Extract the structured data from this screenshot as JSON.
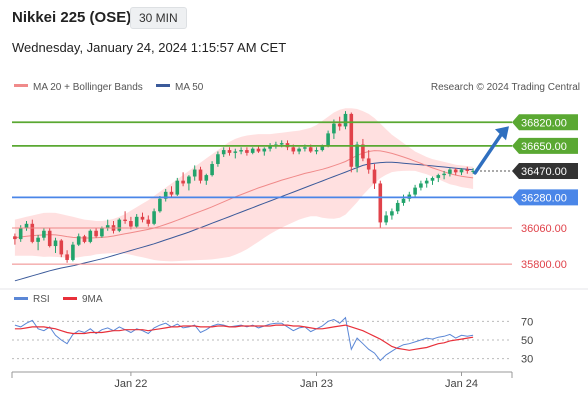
{
  "header": {
    "title": "Nikkei 225 (OSE)",
    "timeframe": "30 MIN",
    "datetime": "Wednesday, January 24, 2024 1:15:57 AM CET"
  },
  "legend": {
    "ma20_label": "MA 20 + Bollinger Bands",
    "ma50_label": "MA 50",
    "source": "Research © 2024 Trading Central"
  },
  "colors": {
    "up": "#22a36b",
    "down": "#e0424a",
    "ma20": "#f08a8a",
    "ma50": "#3b5a9a",
    "band_fill": "#ffd6d6",
    "resistance": "#5aa832",
    "pivot": "#4a86e8",
    "support": "#ef8888",
    "rsi": "#5b87d6",
    "rsi_ma": "#e8303a",
    "arrow": "#2f6fbf"
  },
  "chart_data": [
    {
      "type": "candlestick",
      "title": "Nikkei 225 (OSE)",
      "ylim": [
        35650,
        36980
      ],
      "x_labels": [
        "Jan 22",
        "Jan 23",
        "Jan 24"
      ],
      "current_price": 36470.0,
      "levels": [
        {
          "value": 36820.0,
          "label": "36820.00",
          "kind": "resistance",
          "arrow_target": true
        },
        {
          "value": 36650.0,
          "label": "36650.00",
          "kind": "resistance"
        },
        {
          "value": 36280.0,
          "label": "36280.00",
          "kind": "pivot"
        },
        {
          "value": 36060.0,
          "label": "36060.00",
          "kind": "support"
        },
        {
          "value": 35800.0,
          "label": "35800.00",
          "kind": "support"
        }
      ],
      "candles": [
        [
          36000,
          36020,
          35940,
          35980
        ],
        [
          35980,
          36080,
          35960,
          36060
        ],
        [
          36060,
          36110,
          36040,
          36090
        ],
        [
          36090,
          36120,
          35950,
          35960
        ],
        [
          35960,
          36010,
          35900,
          35990
        ],
        [
          35990,
          36060,
          35970,
          36040
        ],
        [
          36040,
          36060,
          35920,
          35930
        ],
        [
          35930,
          35990,
          35880,
          35970
        ],
        [
          35970,
          35980,
          35850,
          35870
        ],
        [
          35870,
          35900,
          35810,
          35830
        ],
        [
          35830,
          35960,
          35820,
          35940
        ],
        [
          35940,
          36020,
          35930,
          36000
        ],
        [
          36000,
          36010,
          35950,
          35960
        ],
        [
          35960,
          36050,
          35950,
          36040
        ],
        [
          36040,
          36060,
          35990,
          36000
        ],
        [
          36000,
          36070,
          35990,
          36060
        ],
        [
          36060,
          36120,
          36040,
          36080
        ],
        [
          36080,
          36110,
          36020,
          36040
        ],
        [
          36040,
          36130,
          36030,
          36120
        ],
        [
          36120,
          36180,
          36090,
          36110
        ],
        [
          36110,
          36140,
          36050,
          36070
        ],
        [
          36070,
          36160,
          36060,
          36140
        ],
        [
          36140,
          36170,
          36100,
          36120
        ],
        [
          36120,
          36150,
          36070,
          36090
        ],
        [
          36090,
          36200,
          36080,
          36180
        ],
        [
          36180,
          36290,
          36170,
          36270
        ],
        [
          36270,
          36340,
          36250,
          36320
        ],
        [
          36320,
          36360,
          36280,
          36300
        ],
        [
          36300,
          36420,
          36290,
          36400
        ],
        [
          36400,
          36460,
          36360,
          36380
        ],
        [
          36380,
          36440,
          36330,
          36430
        ],
        [
          36430,
          36510,
          36400,
          36480
        ],
        [
          36480,
          36500,
          36380,
          36400
        ],
        [
          36400,
          36450,
          36370,
          36440
        ],
        [
          36440,
          36540,
          36430,
          36520
        ],
        [
          36520,
          36610,
          36500,
          36590
        ],
        [
          36590,
          36640,
          36570,
          36620
        ],
        [
          36620,
          36640,
          36580,
          36600
        ],
        [
          36600,
          36630,
          36560,
          36610
        ],
        [
          36610,
          36640,
          36590,
          36620
        ],
        [
          36620,
          36640,
          36580,
          36600
        ],
        [
          36600,
          36640,
          36590,
          36630
        ],
        [
          36630,
          36650,
          36600,
          36610
        ],
        [
          36610,
          36640,
          36580,
          36630
        ],
        [
          36630,
          36670,
          36610,
          36650
        ],
        [
          36650,
          36680,
          36630,
          36660
        ],
        [
          36660,
          36690,
          36640,
          36670
        ],
        [
          36670,
          36690,
          36620,
          36640
        ],
        [
          36640,
          36660,
          36590,
          36610
        ],
        [
          36610,
          36640,
          36590,
          36630
        ],
        [
          36630,
          36660,
          36610,
          36640
        ],
        [
          36640,
          36660,
          36600,
          36610
        ],
        [
          36610,
          36640,
          36590,
          36620
        ],
        [
          36620,
          36660,
          36610,
          36650
        ],
        [
          36650,
          36760,
          36640,
          36740
        ],
        [
          36740,
          36840,
          36700,
          36810
        ],
        [
          36810,
          36860,
          36760,
          36790
        ],
        [
          36790,
          36900,
          36770,
          36880
        ],
        [
          36880,
          36890,
          36460,
          36500
        ],
        [
          36500,
          36680,
          36460,
          36660
        ],
        [
          36660,
          36700,
          36540,
          36560
        ],
        [
          36560,
          36620,
          36450,
          36480
        ],
        [
          36480,
          36520,
          36340,
          36380
        ],
        [
          36380,
          36400,
          36060,
          36100
        ],
        [
          36100,
          36180,
          36080,
          36150
        ],
        [
          36150,
          36200,
          36120,
          36180
        ],
        [
          36180,
          36260,
          36160,
          36240
        ],
        [
          36240,
          36300,
          36220,
          36270
        ],
        [
          36270,
          36320,
          36250,
          36300
        ],
        [
          36300,
          36370,
          36280,
          36350
        ],
        [
          36350,
          36400,
          36330,
          36380
        ],
        [
          36380,
          36420,
          36350,
          36400
        ],
        [
          36400,
          36430,
          36370,
          36420
        ],
        [
          36420,
          36450,
          36390,
          36440
        ],
        [
          36440,
          36470,
          36410,
          36450
        ],
        [
          36450,
          36490,
          36430,
          36480
        ],
        [
          36480,
          36490,
          36440,
          36460
        ],
        [
          36460,
          36490,
          36440,
          36480
        ],
        [
          36480,
          36500,
          36450,
          36470
        ],
        [
          36470,
          36490,
          36450,
          36470
        ]
      ],
      "ma20": [
        35990,
        35995,
        36000,
        36005,
        36008,
        36010,
        36012,
        36010,
        36005,
        35998,
        35992,
        35990,
        35988,
        35988,
        35990,
        35992,
        35996,
        36002,
        36010,
        36018,
        36026,
        36034,
        36042,
        36050,
        36060,
        36072,
        36086,
        36100,
        36116,
        36132,
        36148,
        36164,
        36180,
        36196,
        36212,
        36230,
        36248,
        36266,
        36284,
        36300,
        36316,
        36332,
        36348,
        36362,
        36376,
        36390,
        36404,
        36416,
        36428,
        36440,
        36452,
        36462,
        36472,
        36482,
        36494,
        36508,
        36522,
        36538,
        36560,
        36580,
        36598,
        36610,
        36616,
        36614,
        36606,
        36596,
        36584,
        36570,
        36556,
        36540,
        36524,
        36508,
        36492,
        36478,
        36464,
        36450,
        36440,
        36432,
        36426,
        36420
      ],
      "ma50": [
        35680,
        35692,
        35704,
        35716,
        35728,
        35740,
        35752,
        35762,
        35772,
        35780,
        35788,
        35798,
        35808,
        35818,
        35828,
        35838,
        35850,
        35862,
        35874,
        35886,
        35898,
        35910,
        35922,
        35934,
        35946,
        35960,
        35974,
        35988,
        36002,
        36016,
        36030,
        36046,
        36062,
        36078,
        36094,
        36110,
        36126,
        36142,
        36158,
        36174,
        36190,
        36206,
        36222,
        36238,
        36254,
        36270,
        36286,
        36302,
        36318,
        36334,
        36350,
        36366,
        36382,
        36398,
        36414,
        36430,
        36446,
        36462,
        36478,
        36494,
        36510,
        36520,
        36526,
        36530,
        36532,
        36532,
        36530,
        36526,
        36522,
        36518,
        36514,
        36510,
        36506,
        36502,
        36498,
        36494,
        36490,
        36486,
        36482,
        36478
      ],
      "bb_upper": [
        36120,
        36130,
        36140,
        36150,
        36160,
        36168,
        36170,
        36168,
        36160,
        36150,
        36140,
        36130,
        36120,
        36115,
        36110,
        36110,
        36115,
        36125,
        36140,
        36160,
        36185,
        36210,
        36235,
        36260,
        36290,
        36320,
        36350,
        36380,
        36410,
        36440,
        36470,
        36500,
        36530,
        36560,
        36590,
        36620,
        36650,
        36680,
        36700,
        36715,
        36725,
        36730,
        36735,
        36735,
        36735,
        36740,
        36745,
        36750,
        36755,
        36760,
        36770,
        36780,
        36800,
        36830,
        36860,
        36890,
        36910,
        36920,
        36920,
        36915,
        36900,
        36880,
        36850,
        36810,
        36770,
        36730,
        36700,
        36670,
        36640,
        36610,
        36590,
        36570,
        36555,
        36545,
        36535,
        36525,
        36515,
        36510,
        36505,
        36500
      ],
      "bb_lower": [
        35860,
        35860,
        35860,
        35860,
        35856,
        35852,
        35854,
        35852,
        35850,
        35846,
        35844,
        35850,
        35856,
        35861,
        35870,
        35874,
        35877,
        35879,
        35880,
        35876,
        35867,
        35858,
        35849,
        35840,
        35830,
        35824,
        35822,
        35820,
        35822,
        35824,
        35826,
        35828,
        35830,
        35832,
        35834,
        35840,
        35846,
        35852,
        35868,
        35885,
        35907,
        35934,
        35961,
        35989,
        36017,
        36040,
        36063,
        36082,
        36101,
        36120,
        36134,
        36144,
        36144,
        36134,
        36128,
        36126,
        36134,
        36156,
        36200,
        36245,
        36296,
        36340,
        36382,
        36418,
        36442,
        36462,
        36468,
        36470,
        36472,
        36470,
        36458,
        36446,
        36429,
        36411,
        36393,
        36375,
        36365,
        36354,
        36347,
        36340
      ]
    },
    {
      "type": "line",
      "title": "RSI",
      "ylim": [
        20,
        80
      ],
      "y_ticks": [
        70,
        50,
        30
      ],
      "series": [
        {
          "name": "RSI",
          "values": [
            66,
            64,
            68,
            71,
            62,
            60,
            64,
            55,
            50,
            46,
            56,
            60,
            58,
            62,
            57,
            61,
            63,
            60,
            64,
            61,
            58,
            62,
            60,
            57,
            63,
            66,
            68,
            64,
            67,
            63,
            64,
            66,
            58,
            61,
            65,
            67,
            66,
            64,
            65,
            66,
            64,
            66,
            63,
            65,
            67,
            68,
            68,
            64,
            60,
            63,
            64,
            59,
            62,
            65,
            70,
            72,
            68,
            74,
            40,
            52,
            46,
            40,
            36,
            28,
            34,
            38,
            42,
            45,
            46,
            48,
            50,
            52,
            51,
            53,
            54,
            56,
            52,
            55,
            54,
            55
          ]
        },
        {
          "name": "9MA",
          "values": [
            62,
            62,
            63,
            64,
            64,
            64,
            63,
            62,
            60,
            58,
            57,
            57,
            57,
            58,
            58,
            58,
            59,
            60,
            60,
            61,
            61,
            61,
            61,
            60,
            61,
            62,
            63,
            64,
            64,
            65,
            65,
            65,
            64,
            64,
            64,
            65,
            65,
            64,
            64,
            65,
            65,
            65,
            65,
            65,
            65,
            66,
            66,
            66,
            65,
            65,
            64,
            63,
            62,
            62,
            63,
            64,
            65,
            66,
            64,
            62,
            60,
            57,
            54,
            51,
            47,
            43,
            41,
            40,
            39,
            40,
            41,
            42,
            44,
            46,
            47,
            49,
            50,
            51,
            52,
            53
          ]
        }
      ]
    }
  ]
}
